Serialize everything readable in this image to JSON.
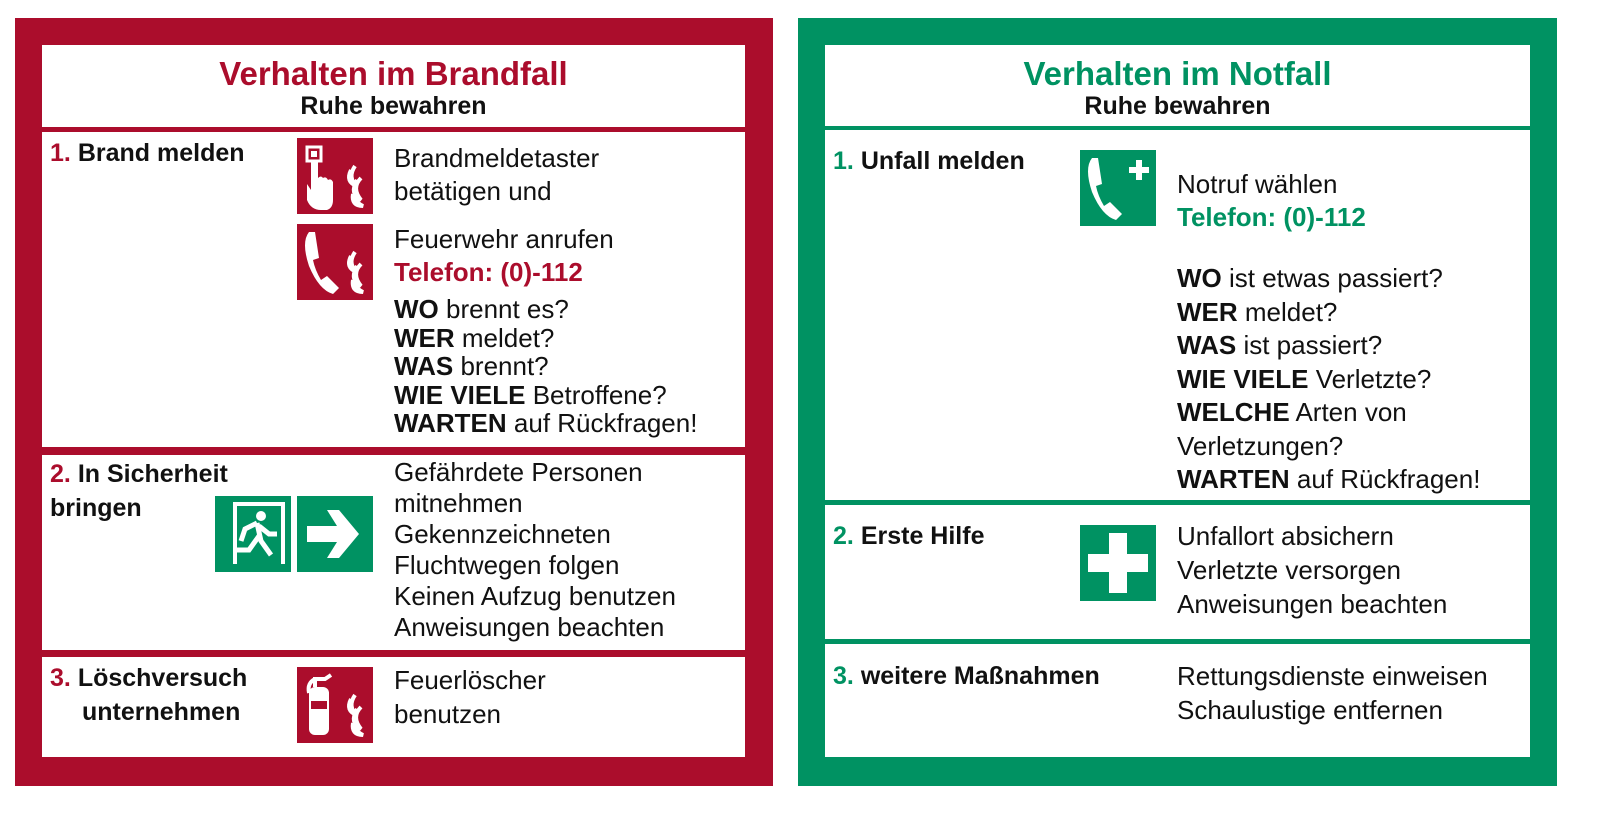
{
  "colors": {
    "fire_red": "#ab0d2c",
    "rescue_green": "#009262"
  },
  "fire": {
    "title": "Verhalten im Brandfall",
    "subtitle": "Ruhe bewahren",
    "sections": [
      {
        "num": "1.",
        "heading": "Brand melden",
        "icons": [
          "fire-alarm-call-point-icon",
          "fire-phone-icon"
        ],
        "lines_a": [
          "Brandmeldetaster",
          "betätigen und"
        ],
        "lines_b": [
          "Feuerwehr anrufen"
        ],
        "phone": "Telefon: (0)-112",
        "questions": [
          {
            "b": "WO",
            "t": " brennt es?"
          },
          {
            "b": "WER",
            "t": " meldet?"
          },
          {
            "b": "WAS",
            "t": " brennt?"
          },
          {
            "b": "WIE VIELE",
            "t": " Betroffene?"
          },
          {
            "b": "WARTEN",
            "t": " auf Rückfragen!"
          }
        ]
      },
      {
        "num": "2.",
        "heading_1": "In Sicherheit",
        "heading_2": "bringen",
        "icons": [
          "emergency-exit-icon",
          "arrow-right-icon"
        ],
        "lines": [
          "Gefährdete Personen",
          "mitnehmen",
          "Gekennzeichneten",
          "Fluchtwegen folgen",
          "Keinen Aufzug benutzen",
          "Anweisungen beachten"
        ]
      },
      {
        "num": "3.",
        "heading_1": "Löschversuch",
        "heading_2": "unternehmen",
        "icons": [
          "fire-extinguisher-icon"
        ],
        "lines": [
          "Feuerlöscher",
          "benutzen"
        ]
      }
    ]
  },
  "emergency": {
    "title": "Verhalten im Notfall",
    "subtitle": "Ruhe bewahren",
    "sections": [
      {
        "num": "1.",
        "heading": "Unfall melden",
        "icons": [
          "first-aid-phone-icon"
        ],
        "lines": [
          "Notruf wählen"
        ],
        "phone": "Telefon: (0)-112",
        "questions": [
          {
            "b": "WO",
            "t": " ist etwas passiert?"
          },
          {
            "b": "WER",
            "t": " meldet?"
          },
          {
            "b": "WAS",
            "t": " ist passiert?"
          },
          {
            "b": "WIE VIELE",
            "t": " Verletzte?"
          },
          {
            "b": "WELCHE",
            "t": " Arten von"
          },
          {
            "b": "",
            "t": "Verletzungen?"
          },
          {
            "b": "WARTEN",
            "t": " auf Rückfragen!"
          }
        ]
      },
      {
        "num": "2.",
        "heading": "Erste Hilfe",
        "icons": [
          "first-aid-icon"
        ],
        "lines": [
          "Unfallort absichern",
          "Verletzte versorgen",
          "Anweisungen beachten"
        ]
      },
      {
        "num": "3.",
        "heading": "weitere Maßnahmen",
        "lines": [
          "Rettungsdienste einweisen",
          "Schaulustige entfernen"
        ]
      }
    ]
  }
}
